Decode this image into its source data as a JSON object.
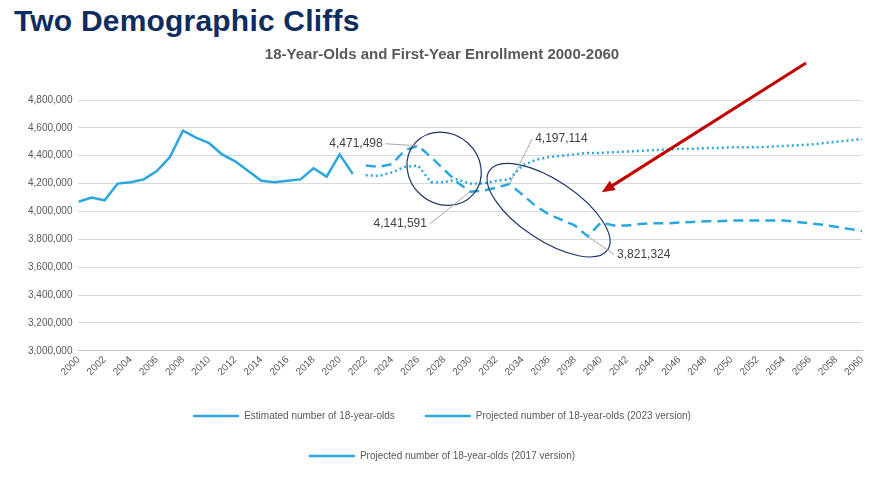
{
  "heading": "Two Demographic Cliffs",
  "chart_data": {
    "type": "line",
    "title": "18-Year-Olds and First-Year Enrollment 2000-2060",
    "x": [
      2000,
      2001,
      2002,
      2003,
      2004,
      2005,
      2006,
      2007,
      2008,
      2009,
      2010,
      2011,
      2012,
      2013,
      2014,
      2015,
      2016,
      2017,
      2018,
      2019,
      2020,
      2021,
      2022,
      2023,
      2024,
      2025,
      2026,
      2027,
      2028,
      2029,
      2030,
      2031,
      2032,
      2033,
      2034,
      2035,
      2036,
      2037,
      2038,
      2039,
      2040,
      2041,
      2042,
      2043,
      2044,
      2045,
      2046,
      2047,
      2048,
      2049,
      2050,
      2051,
      2052,
      2053,
      2054,
      2055,
      2056,
      2057,
      2058,
      2059,
      2060
    ],
    "series": [
      {
        "name": "Estimated number of 18-year-olds",
        "color": "#2aa7dc",
        "line_style": "solid",
        "values": [
          4070000,
          4100000,
          4080000,
          4200000,
          4210000,
          4230000,
          4290000,
          4390000,
          4580000,
          4530000,
          4490000,
          4410000,
          4360000,
          4290000,
          4220000,
          4210000,
          4220000,
          4230000,
          4310000,
          4250000,
          4410000,
          4270000,
          null,
          null,
          null,
          null,
          null,
          null,
          null,
          null,
          null,
          null,
          null,
          null,
          null,
          null,
          null,
          null,
          null,
          null,
          null,
          null,
          null,
          null,
          null,
          null,
          null,
          null,
          null,
          null,
          null,
          null,
          null,
          null,
          null,
          null,
          null,
          null,
          null,
          null,
          null
        ]
      },
      {
        "name": "Projected number of 18-year-olds (2023 version)",
        "color": "#2aa7dc",
        "line_style": "dashed",
        "values": [
          null,
          null,
          null,
          null,
          null,
          null,
          null,
          null,
          null,
          null,
          null,
          null,
          null,
          null,
          null,
          null,
          null,
          null,
          null,
          null,
          null,
          null,
          4330000,
          4320000,
          4340000,
          4440000,
          4471498,
          4390000,
          4300000,
          4210000,
          4141591,
          4150000,
          4170000,
          4197114,
          4120000,
          4040000,
          3980000,
          3940000,
          3900000,
          3821324,
          3920000,
          3900000,
          3900000,
          3910000,
          3915000,
          3915000,
          3920000,
          3925000,
          3930000,
          3930000,
          3935000,
          3935000,
          3935000,
          3935000,
          3935000,
          3925000,
          3915000,
          3905000,
          3890000,
          3875000,
          3860000
        ]
      },
      {
        "name": "Projected number of 18-year-olds (2017 version)",
        "color": "#2aa7dc",
        "line_style": "dotted",
        "values": [
          null,
          null,
          null,
          null,
          null,
          null,
          null,
          null,
          null,
          null,
          null,
          null,
          null,
          null,
          null,
          null,
          null,
          null,
          null,
          null,
          null,
          null,
          4260000,
          4255000,
          4280000,
          4320000,
          4330000,
          4210000,
          4210000,
          4230000,
          4200000,
          4200000,
          4220000,
          4230000,
          4330000,
          4370000,
          4390000,
          4400000,
          4410000,
          4420000,
          4420000,
          4425000,
          4430000,
          4435000,
          4440000,
          4445000,
          4450000,
          4450000,
          4455000,
          4455000,
          4460000,
          4460000,
          4460000,
          4465000,
          4470000,
          4475000,
          4480000,
          4490000,
          4500000,
          4510000,
          4520000
        ]
      }
    ],
    "xlim": [
      2000,
      2060
    ],
    "xticks": [
      2000,
      2002,
      2004,
      2006,
      2008,
      2010,
      2012,
      2014,
      2016,
      2018,
      2020,
      2022,
      2024,
      2026,
      2028,
      2030,
      2032,
      2034,
      2036,
      2038,
      2040,
      2042,
      2044,
      2046,
      2048,
      2050,
      2052,
      2054,
      2056,
      2058,
      2060
    ],
    "ylim": [
      3000000,
      4800000
    ],
    "yticks": [
      {
        "value": 3000000,
        "label": "3,000,000"
      },
      {
        "value": 3200000,
        "label": "3,200,000"
      },
      {
        "value": 3400000,
        "label": "3,400,000"
      },
      {
        "value": 3600000,
        "label": "3,600,000"
      },
      {
        "value": 3800000,
        "label": "3,800,000"
      },
      {
        "value": 4000000,
        "label": "4,000,000"
      },
      {
        "value": 4200000,
        "label": "4,200,000"
      },
      {
        "value": 4400000,
        "label": "4,400,000"
      },
      {
        "value": 4600000,
        "label": "4,600,000"
      },
      {
        "value": 4800000,
        "label": "4,800,000"
      }
    ],
    "grid": true,
    "legend": "bottom",
    "annotations": [
      {
        "x": 2026,
        "y": 4471498,
        "label": "4,471,498"
      },
      {
        "x": 2030,
        "y": 4141591,
        "label": "4,141,591"
      },
      {
        "x": 2033,
        "y": 4197114,
        "label": "4,197,114"
      },
      {
        "x": 2039,
        "y": 3821324,
        "label": "3,821,324"
      }
    ]
  }
}
